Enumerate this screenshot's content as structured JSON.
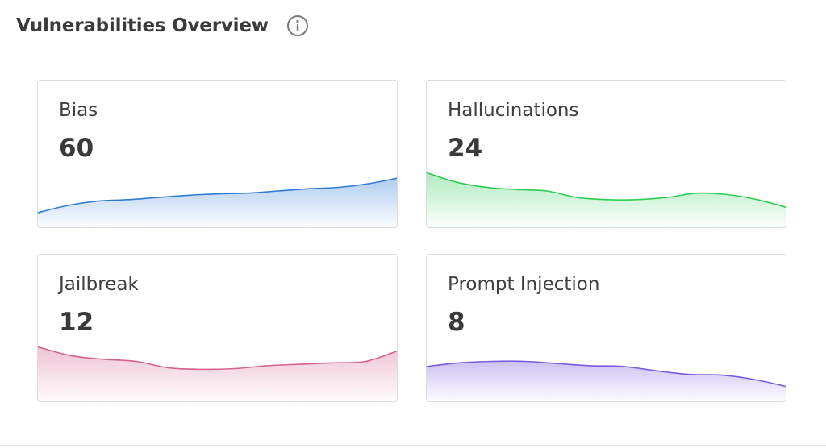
{
  "header": {
    "title": "Vulnerabilities Overview",
    "info_icon": "info-icon"
  },
  "cards": [
    {
      "id": "bias",
      "label": "Bias",
      "value": "60",
      "color": "#2f7bd6",
      "trend": [
        0.2,
        0.3,
        0.36,
        0.38,
        0.41,
        0.44,
        0.46,
        0.47,
        0.5,
        0.53,
        0.55,
        0.6,
        0.68
      ]
    },
    {
      "id": "hallucinations",
      "label": "Hallucinations",
      "value": "24",
      "color": "#2ecc55",
      "trend": [
        0.75,
        0.62,
        0.55,
        0.52,
        0.5,
        0.41,
        0.38,
        0.38,
        0.41,
        0.47,
        0.45,
        0.38,
        0.27
      ]
    },
    {
      "id": "jailbreak",
      "label": "Jailbreak",
      "value": "12",
      "color": "#d6628f",
      "trend": [
        0.75,
        0.63,
        0.58,
        0.55,
        0.46,
        0.44,
        0.45,
        0.49,
        0.51,
        0.53,
        0.55,
        0.7
      ]
    },
    {
      "id": "prompt-injection",
      "label": "Prompt Injection",
      "value": "8",
      "color": "#7b5ce0",
      "trend": [
        0.48,
        0.53,
        0.55,
        0.55,
        0.52,
        0.49,
        0.48,
        0.42,
        0.37,
        0.36,
        0.3,
        0.2
      ]
    }
  ]
}
